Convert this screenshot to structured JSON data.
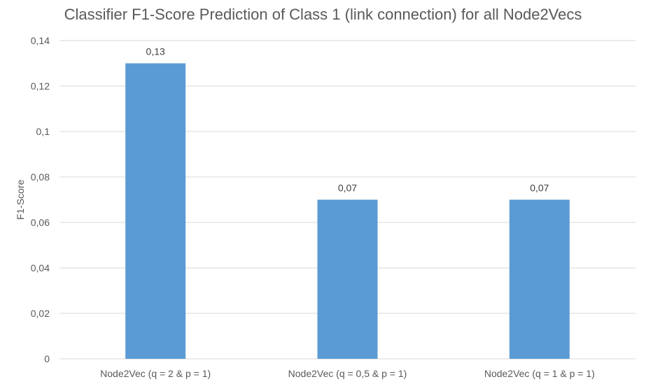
{
  "chart_data": {
    "type": "bar",
    "title": "Classifier F1-Score Prediction of Class 1 (link connection) for all Node2Vecs",
    "xlabel": "",
    "ylabel": "F1-Score",
    "categories": [
      "Node2Vec (q = 2 & p = 1)",
      "Node2Vec (q = 0,5 & p = 1)",
      "Node2Vec (q = 1 & p = 1)"
    ],
    "values": [
      0.13,
      0.07,
      0.07
    ],
    "data_labels": [
      "0,13",
      "0,07",
      "0,07"
    ],
    "ylim": [
      0,
      0.14
    ],
    "yticks": [
      0,
      0.02,
      0.04,
      0.06,
      0.08,
      0.1,
      0.12,
      0.14
    ],
    "ytick_labels": [
      "0",
      "0,02",
      "0,04",
      "0,06",
      "0,08",
      "0,1",
      "0,12",
      "0,14"
    ],
    "grid": true,
    "legend": "none",
    "bar_color": "#5B9BD5",
    "grid_color": "#D9D9D9"
  }
}
